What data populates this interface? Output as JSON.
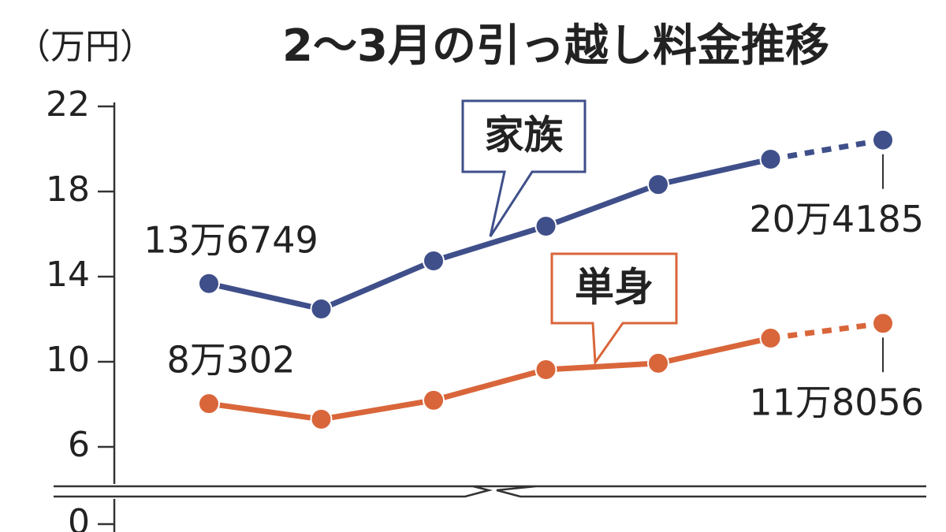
{
  "chart_data": {
    "type": "line",
    "title": "2～3月の引っ越し料金推移",
    "y_label": "（万円）",
    "categories": [
      null,
      null,
      null,
      null,
      null,
      null,
      null
    ],
    "series": [
      {
        "name": "家族",
        "color": "#3f4f8a",
        "values": [
          13.6749,
          12.48,
          14.74,
          16.37,
          18.33,
          19.52,
          20.4185
        ],
        "value_labels": [
          "13万6749",
          null,
          null,
          null,
          null,
          null,
          "20万4185"
        ]
      },
      {
        "name": "単身",
        "color": "#d9663a",
        "values": [
          8.0302,
          7.3,
          8.19,
          9.63,
          9.93,
          11.11,
          11.8056
        ],
        "value_labels": [
          "8万302",
          null,
          null,
          null,
          null,
          null,
          "11万8056"
        ]
      }
    ],
    "ylim": [
      0,
      22
    ],
    "ybreak": [
      0,
      4
    ],
    "yticks": [
      0,
      6,
      10,
      14,
      18,
      22
    ],
    "dash_last_segment": true
  }
}
